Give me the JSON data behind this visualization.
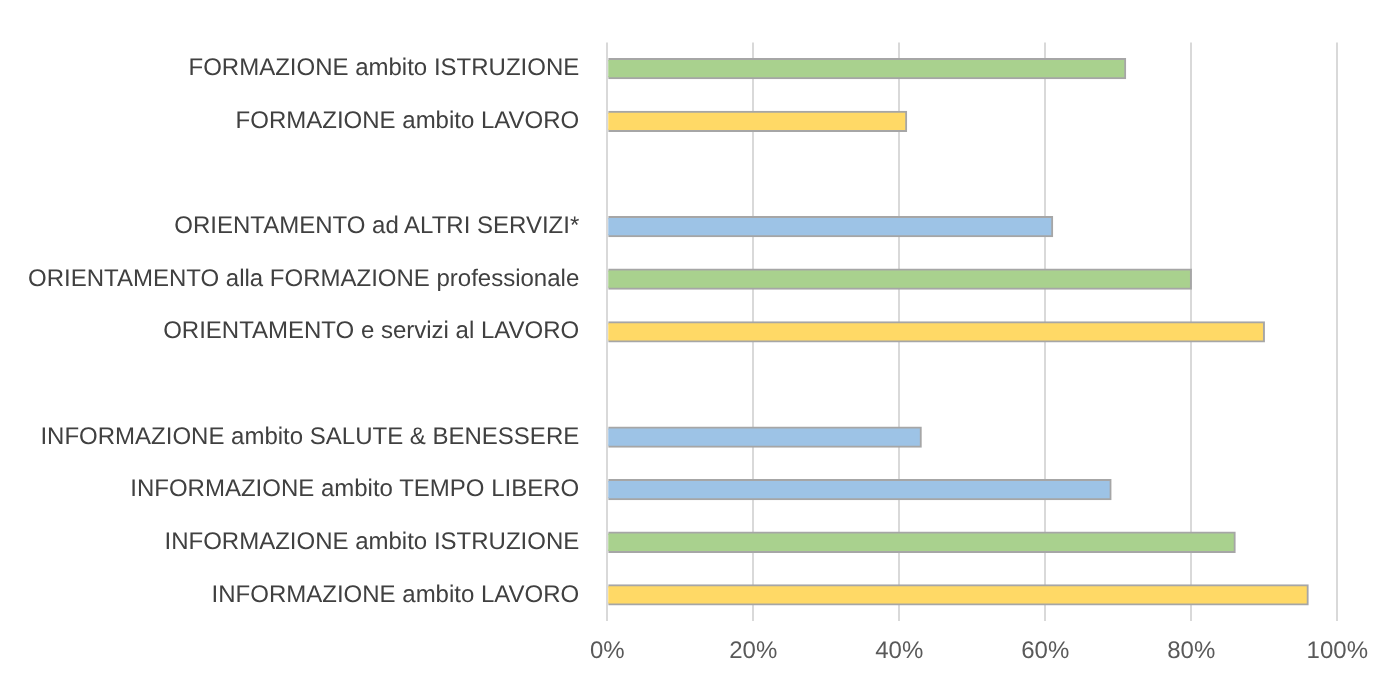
{
  "chart_data": {
    "type": "bar",
    "orientation": "horizontal",
    "categories": [
      "FORMAZIONE ambito ISTRUZIONE",
      "FORMAZIONE ambito LAVORO",
      null,
      "ORIENTAMENTO ad ALTRI SERVIZI*",
      "ORIENTAMENTO alla FORMAZIONE professionale",
      "ORIENTAMENTO e servizi al LAVORO",
      null,
      "INFORMAZIONE ambito SALUTE & BENESSERE",
      "INFORMAZIONE ambito TEMPO LIBERO",
      "INFORMAZIONE ambito ISTRUZIONE",
      "INFORMAZIONE ambito LAVORO"
    ],
    "values": [
      71,
      41,
      null,
      61,
      80,
      90,
      null,
      43,
      69,
      86,
      96
    ],
    "colors": [
      "#a9d18e",
      "#ffd966",
      null,
      "#9dc3e6",
      "#a9d18e",
      "#ffd966",
      null,
      "#9dc3e6",
      "#9dc3e6",
      "#a9d18e",
      "#ffd966"
    ],
    "xlim": [
      0,
      100
    ],
    "xticks": [
      {
        "value": 0,
        "label": "0%"
      },
      {
        "value": 20,
        "label": "20%"
      },
      {
        "value": 40,
        "label": "40%"
      },
      {
        "value": 60,
        "label": "60%"
      },
      {
        "value": 80,
        "label": "80%"
      },
      {
        "value": 100,
        "label": "100%"
      }
    ],
    "grid": "x",
    "legend": false
  }
}
